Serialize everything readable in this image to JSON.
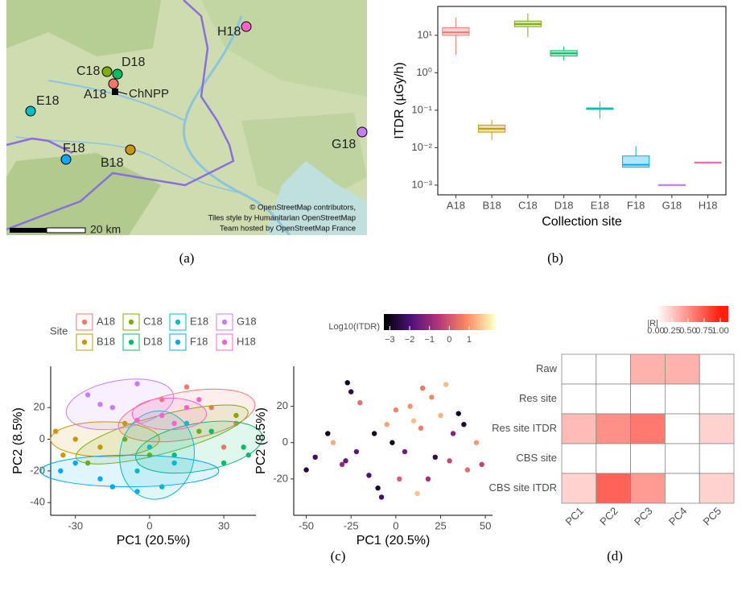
{
  "panel_labels": [
    "(a)",
    "(b)",
    "(c)",
    "(d)"
  ],
  "map": {
    "sites": [
      {
        "label": "H18",
        "color": "#ff61cc"
      },
      {
        "label": "C18",
        "color": "#7cae00"
      },
      {
        "label": "D18",
        "color": "#00be67"
      },
      {
        "label": "A18",
        "color": "#f8766d"
      },
      {
        "label": "E18",
        "color": "#00bfc4"
      },
      {
        "label": "G18",
        "color": "#c77cff"
      },
      {
        "label": "F18",
        "color": "#00a9ff"
      },
      {
        "label": "B18",
        "color": "#cd9600"
      }
    ],
    "plant_label": "ChNPP",
    "attribution": [
      "© OpenStreetMap contributors,",
      "Tiles style by Humanitarian OpenStreetMap",
      "Team hosted by OpenStreetMap France"
    ],
    "scale_label": "20 km"
  },
  "chart_data": [
    {
      "type": "box",
      "y_label": "ITDR (µGy/h)",
      "x_label": "Collection site",
      "log_scale": true,
      "categories": [
        "A18",
        "B18",
        "C18",
        "D18",
        "E18",
        "F18",
        "G18",
        "H18"
      ],
      "colors": [
        "#f8766d",
        "#cd9600",
        "#7cae00",
        "#00be67",
        "#00bfc4",
        "#00a9ff",
        "#c77cff",
        "#ff61cc"
      ],
      "stats": [
        {
          "min": 3,
          "q1": 10,
          "median": 12,
          "q3": 16,
          "max": 30
        },
        {
          "min": 0.016,
          "q1": 0.026,
          "median": 0.032,
          "q3": 0.04,
          "max": 0.055
        },
        {
          "min": 9,
          "q1": 17,
          "median": 20,
          "q3": 24,
          "max": 38
        },
        {
          "min": 2.1,
          "q1": 2.8,
          "median": 3.3,
          "q3": 3.9,
          "max": 5
        },
        {
          "min": 0.06,
          "q1": 0.105,
          "median": 0.11,
          "q3": 0.115,
          "max": 0.17
        },
        {
          "min": 0.003,
          "q1": 0.003,
          "median": 0.0035,
          "q3": 0.006,
          "max": 0.011
        },
        {
          "min": 0.00095,
          "q1": 0.00098,
          "median": 0.001,
          "q3": 0.00103,
          "max": 0.00108
        },
        {
          "min": 0.0038,
          "q1": 0.0039,
          "median": 0.004,
          "q3": 0.0041,
          "max": 0.0043
        }
      ],
      "ylim": [
        0.00055,
        59
      ],
      "yticks": [
        {
          "value": 0.001,
          "label": "10⁻³"
        },
        {
          "value": 0.01,
          "label": "10⁻²"
        },
        {
          "value": 0.1,
          "label": "10⁻¹"
        },
        {
          "value": 1,
          "label": "10⁰"
        },
        {
          "value": 10,
          "label": "10¹"
        }
      ]
    },
    {
      "type": "scatter",
      "x_label": "PC1 (20.5%)",
      "y_label": "PC2 (8.5%)",
      "legend_title": "Site",
      "legend_position": "top",
      "xlim": [
        -40,
        43
      ],
      "xticks": [
        -30,
        0,
        30
      ],
      "ylim": [
        -48,
        46
      ],
      "yticks": [
        -40,
        -20,
        0,
        20
      ],
      "series": [
        {
          "name": "A18",
          "color": "#f8766d",
          "x": [
            15,
            25,
            35,
            5,
            30
          ],
          "y": [
            33,
            20,
            10,
            25,
            -5
          ],
          "ellipse": {
            "center": [
              15,
              15
            ],
            "radii": [
              28,
              15
            ],
            "angle": -10
          }
        },
        {
          "name": "B18",
          "color": "#cd9600",
          "x": [
            -38,
            -35,
            -20,
            -10,
            -30
          ],
          "y": [
            5,
            -10,
            -5,
            10,
            0
          ],
          "ellipse": {
            "center": [
              -18,
              0
            ],
            "radii": [
              22,
              11
            ],
            "angle": 0
          }
        },
        {
          "name": "C18",
          "color": "#7cae00",
          "x": [
            -10,
            0,
            20,
            35,
            -25
          ],
          "y": [
            0,
            -10,
            5,
            15,
            -15
          ],
          "ellipse": {
            "center": [
              5,
              3
            ],
            "radii": [
              36,
              12
            ],
            "angle": -15
          }
        },
        {
          "name": "D18",
          "color": "#00be67",
          "x": [
            10,
            25,
            38,
            40,
            30
          ],
          "y": [
            -10,
            5,
            -5,
            -10,
            -15
          ],
          "ellipse": {
            "center": [
              20,
              -5
            ],
            "radii": [
              26,
              15
            ],
            "angle": -10
          }
        },
        {
          "name": "E18",
          "color": "#00bfc4",
          "x": [
            -5,
            5,
            10,
            0,
            15
          ],
          "y": [
            -20,
            -30,
            -15,
            -5,
            10
          ],
          "ellipse": {
            "center": [
              3,
              -10
            ],
            "radii": [
              15,
              28
            ],
            "angle": 10
          }
        },
        {
          "name": "F18",
          "color": "#00a9ff",
          "x": [
            -36,
            -30,
            -20,
            -15,
            -5
          ],
          "y": [
            -20,
            -15,
            -25,
            -30,
            -33
          ],
          "ellipse": {
            "center": [
              -8,
              -20
            ],
            "radii": [
              36,
              10
            ],
            "angle": 0
          }
        },
        {
          "name": "G18",
          "color": "#c77cff",
          "x": [
            -25,
            -15,
            -5,
            5,
            -20
          ],
          "y": [
            28,
            20,
            35,
            15,
            22
          ],
          "ellipse": {
            "center": [
              -12,
              22
            ],
            "radii": [
              22,
              15
            ],
            "angle": -10
          }
        },
        {
          "name": "H18",
          "color": "#ff61cc",
          "x": [
            5,
            10,
            15,
            20,
            -5
          ],
          "y": [
            15,
            10,
            20,
            25,
            12
          ],
          "ellipse": {
            "center": [
              8,
              16
            ],
            "radii": [
              15,
              10
            ],
            "angle": 0
          }
        }
      ]
    },
    {
      "type": "gradient_scatter",
      "x_label": "PC1 (20.5%)",
      "y_label": "PC2 (8.5%)",
      "colormap": "magma",
      "xlim": [
        -57,
        54
      ],
      "xticks": [
        -50,
        -25,
        0,
        25,
        50
      ],
      "ylim": [
        -40,
        42
      ],
      "yticks": [
        -20,
        0,
        20
      ],
      "x": [
        -27,
        -25,
        -20,
        -38,
        -45,
        -30,
        -15,
        -10,
        -5,
        0,
        5,
        10,
        15,
        20,
        25,
        30,
        35,
        40,
        45,
        48,
        -50,
        -35,
        -22,
        -12,
        2,
        12,
        22,
        32,
        8,
        -2,
        18,
        28,
        38,
        -28,
        -8,
        14
      ],
      "y": [
        33,
        28,
        22,
        5,
        -8,
        -12,
        -18,
        -25,
        10,
        18,
        -5,
        12,
        30,
        25,
        15,
        -10,
        16,
        -15,
        0,
        -12,
        -15,
        0,
        -5,
        5,
        -20,
        -28,
        -8,
        5,
        20,
        0,
        -20,
        32,
        10,
        -10,
        -30,
        8
      ],
      "c": [
        -3,
        -2.5,
        0.5,
        -3,
        -2.2,
        -1,
        -2,
        -2.8,
        1.2,
        0.8,
        -1.5,
        1.5,
        0.6,
        0.9,
        1.4,
        -0.2,
        -3,
        0.4,
        1.1,
        -0.3,
        -2.6,
        1.3,
        -1.8,
        -2.9,
        0.2,
        1.6,
        -2.4,
        -1.2,
        1.0,
        -3,
        -0.8,
        1.5,
        -2.7,
        -1.6,
        -2.1,
        0.7
      ],
      "colorbar": {
        "label": "Log10(ITDR)",
        "lim": [
          -3.3,
          2.3
        ],
        "ticks": [
          {
            "value": -3,
            "label": "−3"
          },
          {
            "value": -2,
            "label": "−2"
          },
          {
            "value": -1,
            "label": "−1"
          },
          0,
          1
        ]
      }
    },
    {
      "type": "heatmap",
      "rows": [
        "Raw",
        "Res site",
        "Res site ITDR",
        "CBS site",
        "CBS site ITDR"
      ],
      "columns": [
        "PC1",
        "PC2",
        "PC3",
        "PC4",
        "PC5"
      ],
      "values": [
        [
          0,
          0,
          0.35,
          0.35,
          0
        ],
        [
          0,
          0,
          0,
          0,
          0
        ],
        [
          0.3,
          0.5,
          0.6,
          0,
          0.2
        ],
        [
          0,
          0,
          0,
          0,
          0
        ],
        [
          0.2,
          0.7,
          0.45,
          0,
          0.2
        ]
      ],
      "colorbar": {
        "label": "|R|",
        "lim": [
          -0.125,
          1.125
        ],
        "ticks": [
          {
            "value": 0,
            "label": "0.00"
          },
          {
            "value": 0.25,
            "label": "0.25"
          },
          {
            "value": 0.5,
            "label": "0.50"
          },
          {
            "value": 0.75,
            "label": "0.75"
          },
          {
            "value": 1,
            "label": "1.00"
          }
        ]
      }
    }
  ]
}
